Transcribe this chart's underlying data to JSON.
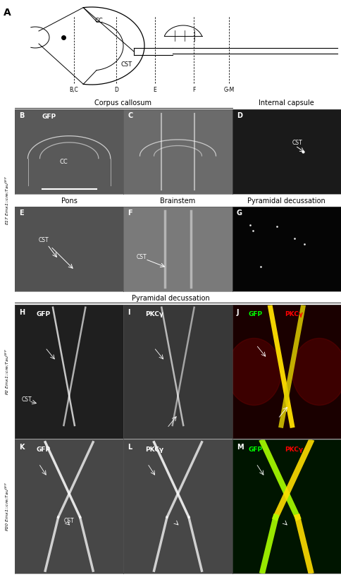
{
  "figure_width": 4.84,
  "figure_height": 8.18,
  "dpi": 100,
  "bg_color": "#ffffff",
  "row1_title_left": "Corpus callosum",
  "row1_title_right": "Internal capsule",
  "row2_title_left": "Pons",
  "row2_title_mid": "Brainstem",
  "row2_title_right": "Pyramidal decussation",
  "row3_title": "Pyramidal decussation",
  "side_E17": "E17 Emx1::cre;Tau",
  "side_E17_sup": "GFP",
  "side_P2": "P2 Emx1::cre;Tau",
  "side_P2_sup": "GFP",
  "side_P20": "P20 Emx1::cre;Tau",
  "side_P20_sup": "GFP",
  "panel_labels": [
    "A",
    "B",
    "C",
    "D",
    "E",
    "F",
    "G",
    "H",
    "I",
    "J",
    "K",
    "L",
    "M"
  ],
  "cc_label": "CC",
  "cst_label": "CST",
  "gfp_label": "GFP",
  "pkcy_label": "PKCγ",
  "gfp_color": "#00ff00",
  "pkcy_color": "#ff0000",
  "white": "#ffffff",
  "black": "#000000"
}
